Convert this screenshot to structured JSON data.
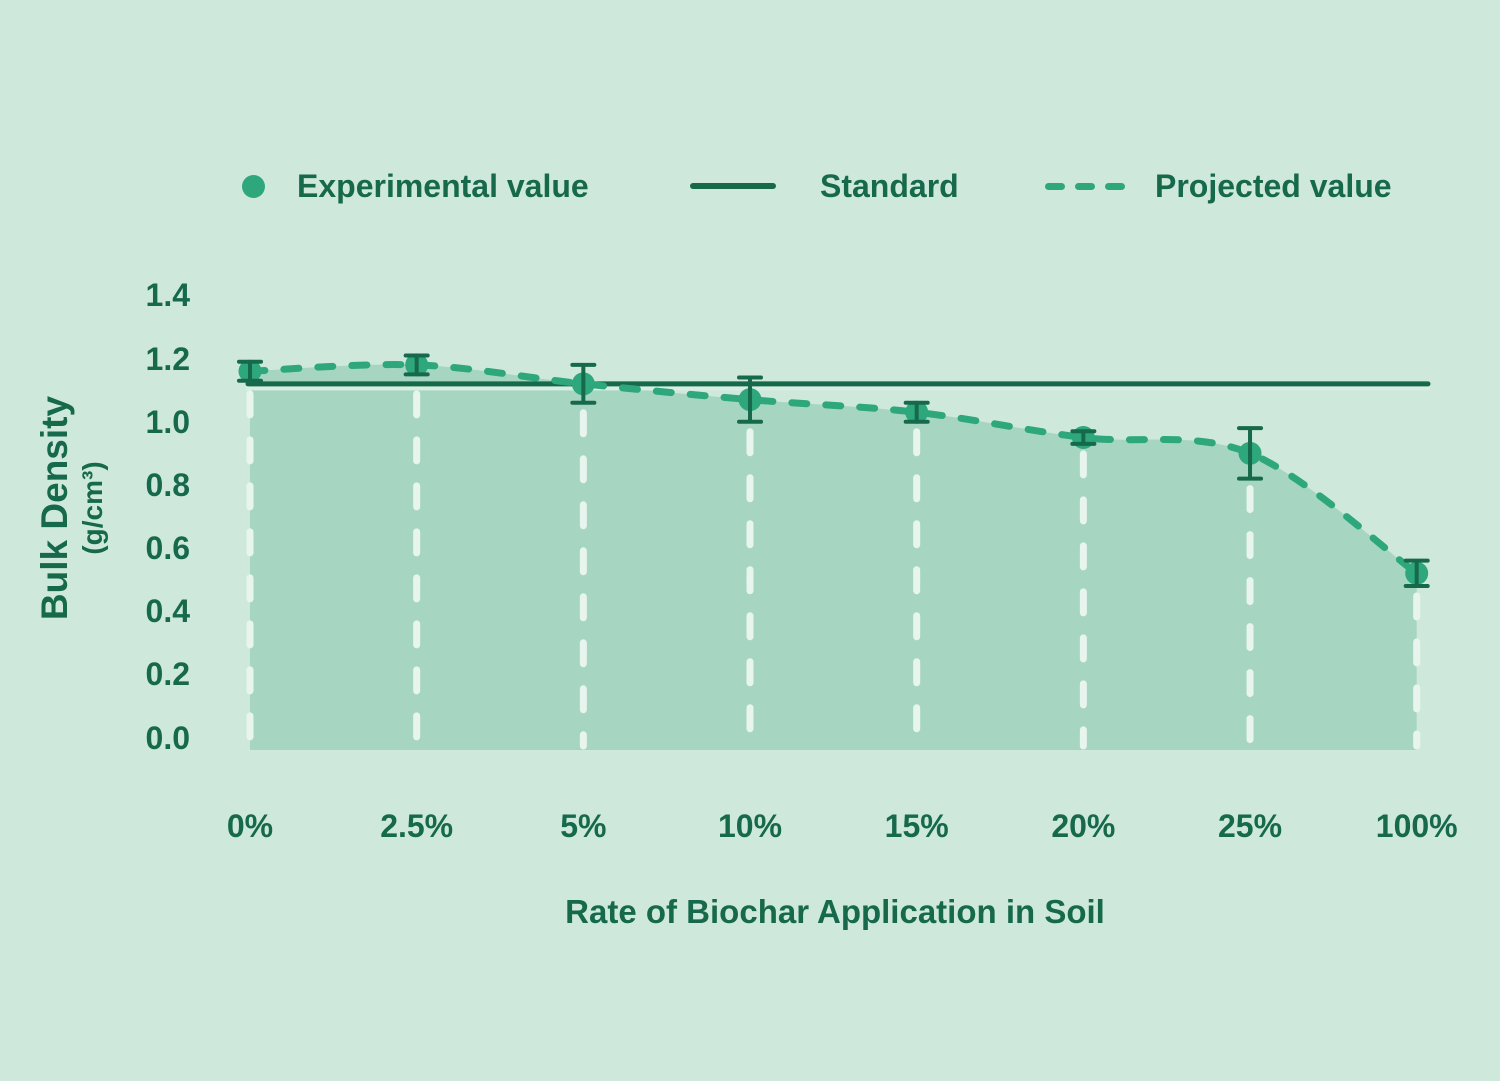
{
  "colors": {
    "background": "#cee9db",
    "accent_green": "#2ea77c",
    "dark_green": "#17694c",
    "area_fill": "#a6d6c1",
    "gridline_white": "#e8f5ee",
    "standard_casing": "#d8eee3"
  },
  "legend": {
    "items": [
      {
        "label": "Experimental value",
        "marker": "dot"
      },
      {
        "label": "Standard",
        "marker": "solid-line"
      },
      {
        "label": "Projected value",
        "marker": "dashed-line"
      }
    ]
  },
  "chart_data": {
    "type": "line",
    "categories": [
      "0%",
      "2.5%",
      "5%",
      "10%",
      "15%",
      "20%",
      "25%",
      "100%"
    ],
    "series": [
      {
        "name": "Experimental value",
        "style": "points-with-error-bars",
        "values": [
          1.16,
          1.18,
          1.12,
          1.07,
          1.03,
          0.95,
          0.9,
          0.52
        ],
        "errors": [
          0.03,
          0.03,
          0.06,
          0.07,
          0.03,
          0.02,
          0.08,
          0.04
        ]
      },
      {
        "name": "Projected value",
        "style": "dashed-line-with-area-fill",
        "values": [
          1.16,
          1.18,
          1.12,
          1.07,
          1.03,
          0.95,
          0.9,
          0.52
        ]
      },
      {
        "name": "Standard",
        "style": "horizontal-reference-line",
        "value": 1.12
      }
    ],
    "xlabel": "Rate of Biochar Application in Soil",
    "ylabel": "Bulk Density",
    "ylabel_units": "(g/cm³)",
    "yticks": [
      1.4,
      1.2,
      1.0,
      0.8,
      0.6,
      0.4,
      0.2,
      0.0
    ],
    "ylim": [
      0.0,
      1.4
    ],
    "grid": "vertical-dashed-white-at-each-category",
    "legend_position": "top"
  }
}
